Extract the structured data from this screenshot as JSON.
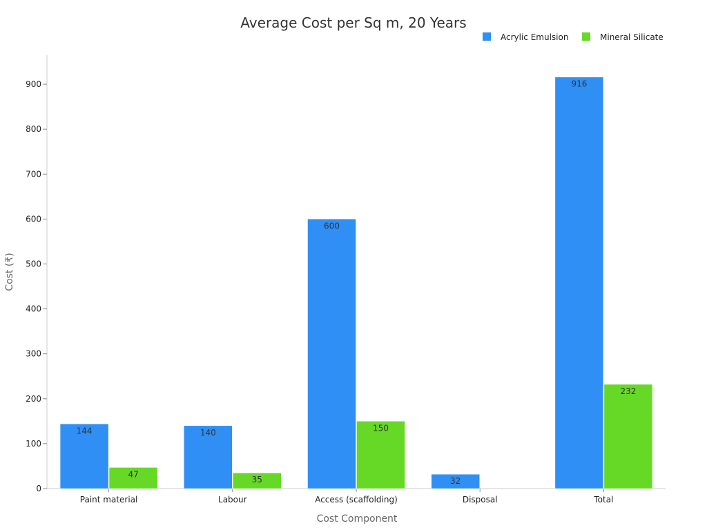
{
  "chart_data": {
    "type": "bar",
    "title": "Average Cost per Sq m, 20 Years",
    "xlabel": "Cost Component",
    "ylabel": "Cost (₹)",
    "categories": [
      "Paint material",
      "Labour",
      "Access (scaffolding)",
      "Disposal",
      "Total"
    ],
    "series": [
      {
        "name": "Acrylic Emulsion",
        "color": "#2f8ff5",
        "values": [
          144,
          140,
          600,
          32,
          916
        ]
      },
      {
        "name": "Mineral Silicate",
        "color": "#66d926",
        "values": [
          47,
          35,
          150,
          null,
          232
        ]
      }
    ],
    "ylim": [
      0,
      960
    ],
    "yticks": [
      0,
      100,
      200,
      300,
      400,
      500,
      600,
      700,
      800,
      900
    ],
    "grid": false,
    "legend_position": "top-right"
  }
}
